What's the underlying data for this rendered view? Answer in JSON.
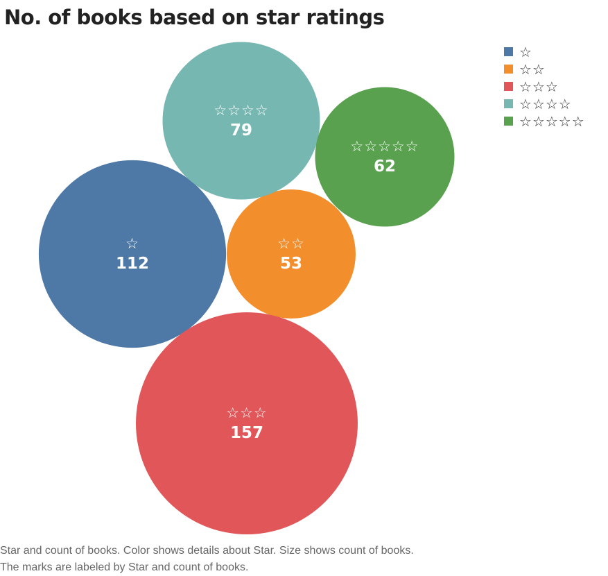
{
  "title": "No. of books based on star ratings",
  "chart_data": {
    "type": "bubble",
    "categories": [
      "☆",
      "☆☆",
      "☆☆☆",
      "☆☆☆☆",
      "☆☆☆☆☆"
    ],
    "values": [
      112,
      53,
      157,
      79,
      62
    ],
    "colors": [
      "#4e79a7",
      "#f28e2b",
      "#e15759",
      "#76b7b2",
      "#59a14f"
    ],
    "legend": {
      "position": "top-right",
      "entries": [
        {
          "label": "☆",
          "color": "#4e79a7"
        },
        {
          "label": "☆☆",
          "color": "#f28e2b"
        },
        {
          "label": "☆☆☆",
          "color": "#e15759"
        },
        {
          "label": "☆☆☆☆",
          "color": "#76b7b2"
        },
        {
          "label": "☆☆☆☆☆",
          "color": "#59a14f"
        }
      ]
    }
  },
  "caption": {
    "line1": "Star and count of books.  Color shows details about Star.  Size shows count of books.",
    "line2": "The marks are labeled by Star and count of books."
  }
}
